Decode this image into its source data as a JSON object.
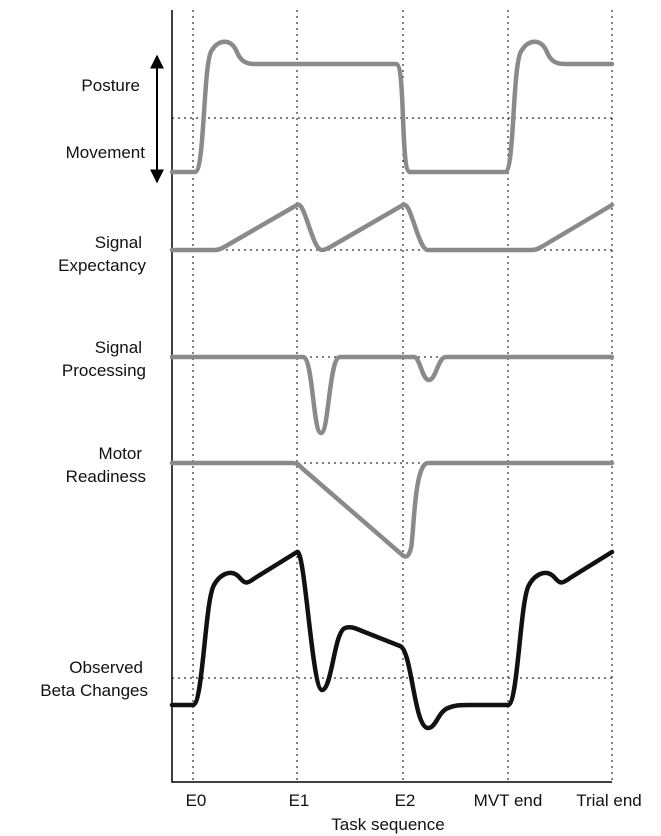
{
  "labels": [
    "Posture",
    "Movement",
    "Signal",
    "Expectancy",
    "Signal",
    "Processing",
    "Motor",
    "Readiness",
    "Observed",
    "Beta Changes"
  ],
  "x_labels": [
    "E0",
    "E1",
    "E2",
    "MVT end",
    "Trial end"
  ],
  "x_title": "Task sequence"
}
